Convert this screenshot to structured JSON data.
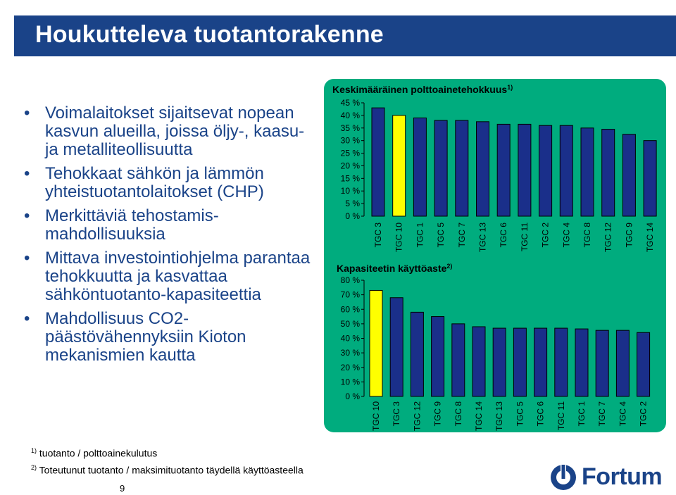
{
  "slide": {
    "title": "Houkutteleva tuotantorakenne",
    "page_number": "9"
  },
  "bullets": [
    "Voimalaitokset sijaitsevat nopean kasvun alueilla, joissa öljy-, kaasu- ja metalliteollisuutta",
    "Tehokkaat sähkön ja lämmön yhteistuotantolaitokset (CHP)",
    "Merkittäviä tehostamis-mahdollisuuksia",
    "Mittava investointiohjelma parantaa tehokkuutta ja kasvattaa sähköntuotanto-kapasiteettia",
    "Mahdollisuus CO2-päästövähennyksiin Kioton mekanismien kautta"
  ],
  "footnotes": {
    "note1_marker": "1)",
    "note1_text": "tuotanto / polttoainekulutus",
    "note2_marker": "2)",
    "note2_text": "Toteutunut tuotanto / maksimituotanto täydellä käyttöasteella"
  },
  "logo": {
    "text": "Fortum",
    "color": "#1a4388"
  },
  "colors": {
    "bar": "#1a2f8a",
    "highlight_bar": "#ffff00",
    "panel": "#00ac7e",
    "title_band": "#1a4388"
  },
  "chart_data": [
    {
      "type": "bar",
      "title": "Keskimääräinen polttoainetehokkuus",
      "title_marker": "1)",
      "categories": [
        "TGC 3",
        "TGC 10",
        "TGC 1",
        "TGC 5",
        "TGC 7",
        "TGC 13",
        "TGC 6",
        "TGC 11",
        "TGC 2",
        "TGC 4",
        "TGC 8",
        "TGC 12",
        "TGC 9",
        "TGC 14"
      ],
      "values": [
        43,
        40,
        39,
        38,
        38,
        37.5,
        36.5,
        36.5,
        36,
        36,
        35,
        34.5,
        32.5,
        30
      ],
      "highlight_index": 1,
      "yticks": [
        "0 %",
        "5 %",
        "10 %",
        "15 %",
        "20 %",
        "25 %",
        "30 %",
        "35 %",
        "40 %",
        "45 %"
      ],
      "ylim": [
        0,
        45
      ],
      "grid": false
    },
    {
      "type": "bar",
      "title": "Kapasiteetin käyttöaste",
      "title_marker": "2)",
      "categories": [
        "TGC 10",
        "TGC 3",
        "TGC 12",
        "TGC 9",
        "TGC 8",
        "TGC 14",
        "TGC 13",
        "TGC 5",
        "TGC 6",
        "TGC 11",
        "TGC 1",
        "TGC 7",
        "TGC 4",
        "TGC 2"
      ],
      "values": [
        73,
        68,
        58,
        55,
        50,
        48,
        47,
        47,
        47,
        47,
        46.5,
        45.5,
        45.5,
        44
      ],
      "highlight_index": 0,
      "yticks": [
        "0 %",
        "10 %",
        "20 %",
        "30 %",
        "40 %",
        "50 %",
        "60 %",
        "70 %",
        "80 %"
      ],
      "ylim": [
        0,
        80
      ],
      "grid": false
    }
  ]
}
